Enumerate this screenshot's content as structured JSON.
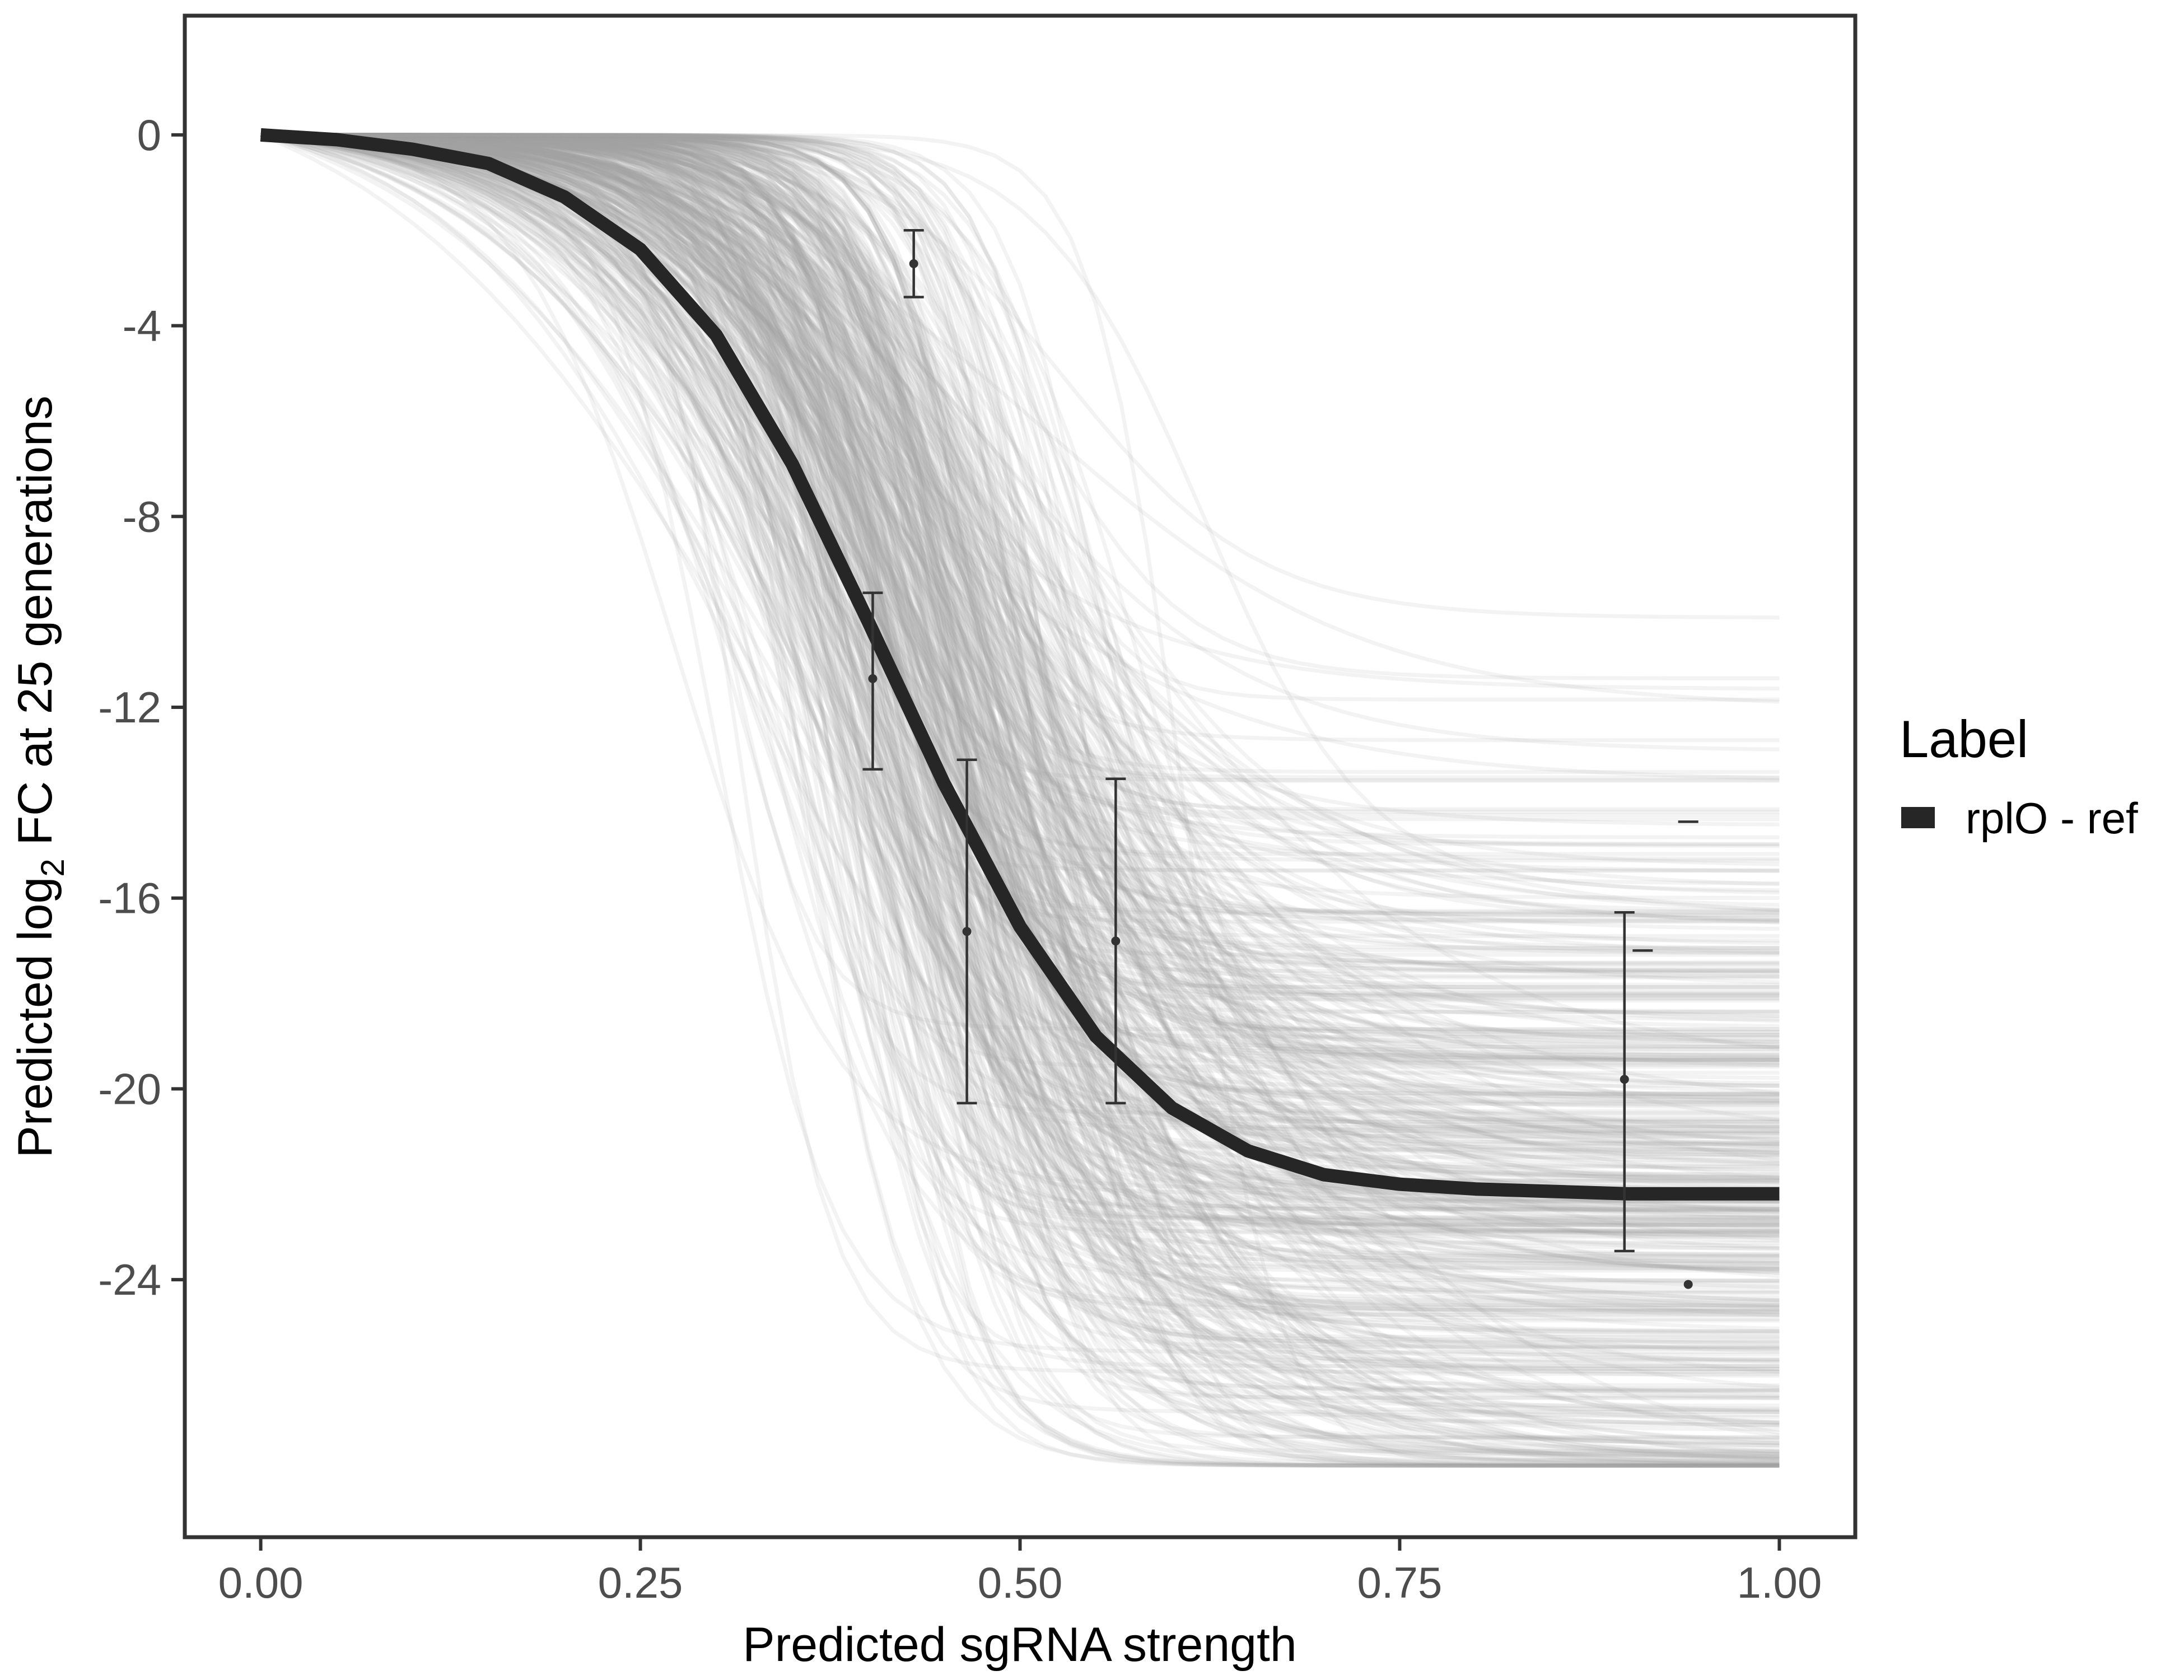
{
  "colors": {
    "background": "#ffffff",
    "panel_border": "#333333",
    "posterior_draws": "#a6a6a6",
    "fit_line": "#262626",
    "observed_points": "#333333",
    "tick_label": "#4d4d4d"
  },
  "chart_data": {
    "type": "line",
    "xlabel": "Predicted sgRNA strength",
    "ylabel_parts": [
      "Predicted  log",
      "2",
      " FC at 25 generations"
    ],
    "xlim": [
      -0.05,
      1.05
    ],
    "ylim": [
      -29.4,
      2.5
    ],
    "x_ticks": [
      0.0,
      0.25,
      0.5,
      0.75,
      1.0
    ],
    "x_tick_labels": [
      "0.00",
      "0.25",
      "0.50",
      "0.75",
      "1.00"
    ],
    "y_ticks": [
      0,
      -4,
      -8,
      -12,
      -16,
      -20,
      -24
    ],
    "y_tick_labels": [
      "0",
      "-4",
      "-8",
      "-12",
      "-16",
      "-20",
      "-24"
    ],
    "grid": false,
    "legend": {
      "title": "Label",
      "position": "right",
      "entries": [
        {
          "label": "rplO - ref",
          "color": "#262626"
        }
      ]
    },
    "series": [
      {
        "name": "rplO - ref",
        "x": [
          0.0,
          0.05,
          0.1,
          0.15,
          0.2,
          0.25,
          0.3,
          0.35,
          0.4,
          0.45,
          0.5,
          0.55,
          0.6,
          0.65,
          0.7,
          0.75,
          0.8,
          0.85,
          0.9,
          0.95,
          1.0
        ],
        "y": [
          0.0,
          -0.1,
          -0.3,
          -0.6,
          -1.3,
          -2.4,
          -4.2,
          -6.9,
          -10.2,
          -13.6,
          -16.6,
          -18.9,
          -20.4,
          -21.3,
          -21.8,
          -22.0,
          -22.1,
          -22.15,
          -22.2,
          -22.2,
          -22.2
        ]
      }
    ],
    "observed": [
      {
        "x": 0.43,
        "y": -2.7,
        "ymin": -3.4,
        "ymax": -2.0
      },
      {
        "x": 0.403,
        "y": -11.4,
        "ymin": -13.3,
        "ymax": -9.6
      },
      {
        "x": 0.465,
        "y": -16.7,
        "ymin": -20.3,
        "ymax": -13.1
      },
      {
        "x": 0.563,
        "y": -16.9,
        "ymin": -20.3,
        "ymax": -13.5
      },
      {
        "x": 0.898,
        "y": -19.8,
        "ymin": -23.4,
        "ymax": -16.3
      },
      {
        "x": 0.94,
        "y": -24.1
      },
      {
        "x": 0.94,
        "ymin": -14.4,
        "ymax": -14.4
      },
      {
        "x": 0.91,
        "ymin": -17.1,
        "ymax": -17.1
      }
    ]
  }
}
